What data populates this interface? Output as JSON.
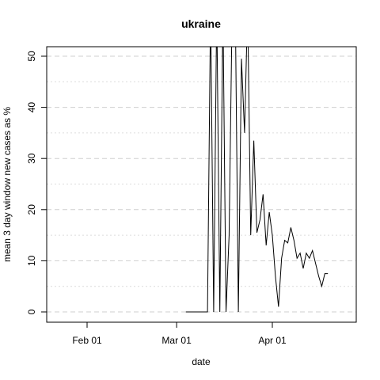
{
  "chart_data": {
    "type": "line",
    "title": "ukraine",
    "xlabel": "date",
    "ylabel": "mean  3  day window new cases as %",
    "x_ticks": [
      "Feb 01",
      "Mar 01",
      "Apr 01"
    ],
    "y_ticks": [
      0,
      10,
      20,
      30,
      40,
      50
    ],
    "xlim": [
      "2020-01-22",
      "2020-04-22"
    ],
    "ylim": [
      -2,
      52
    ],
    "grid": true,
    "grid_style": "dashed-horizontal",
    "series": [
      {
        "x": [
          "2020-03-04",
          "2020-03-05",
          "2020-03-06",
          "2020-03-07",
          "2020-03-08",
          "2020-03-09",
          "2020-03-10",
          "2020-03-11",
          "2020-03-12",
          "2020-03-13",
          "2020-03-14",
          "2020-03-15",
          "2020-03-16",
          "2020-03-17",
          "2020-03-18",
          "2020-03-19",
          "2020-03-20",
          "2020-03-21",
          "2020-03-22",
          "2020-03-23",
          "2020-03-24",
          "2020-03-25",
          "2020-03-26",
          "2020-03-27",
          "2020-03-28",
          "2020-03-29",
          "2020-03-30",
          "2020-03-31",
          "2020-04-01",
          "2020-04-02",
          "2020-04-03",
          "2020-04-04",
          "2020-04-05",
          "2020-04-06",
          "2020-04-07",
          "2020-04-08",
          "2020-04-09",
          "2020-04-10",
          "2020-04-11",
          "2020-04-12",
          "2020-04-13",
          "2020-04-14",
          "2020-04-15",
          "2020-04-16",
          "2020-04-17",
          "2020-04-18",
          "2020-04-19"
        ],
        "values": [
          0,
          0,
          0,
          0,
          0,
          0,
          0,
          0,
          60,
          0,
          60,
          0,
          60,
          0,
          15,
          60,
          60,
          0,
          49.5,
          35,
          60,
          15,
          33.5,
          15.5,
          18,
          23,
          13,
          19.5,
          15,
          7,
          1,
          10.5,
          14,
          13.5,
          16.5,
          14,
          10.5,
          11.5,
          8.5,
          11.5,
          10.5,
          12,
          9.5,
          7,
          5,
          7.5,
          7.5
        ]
      }
    ]
  }
}
